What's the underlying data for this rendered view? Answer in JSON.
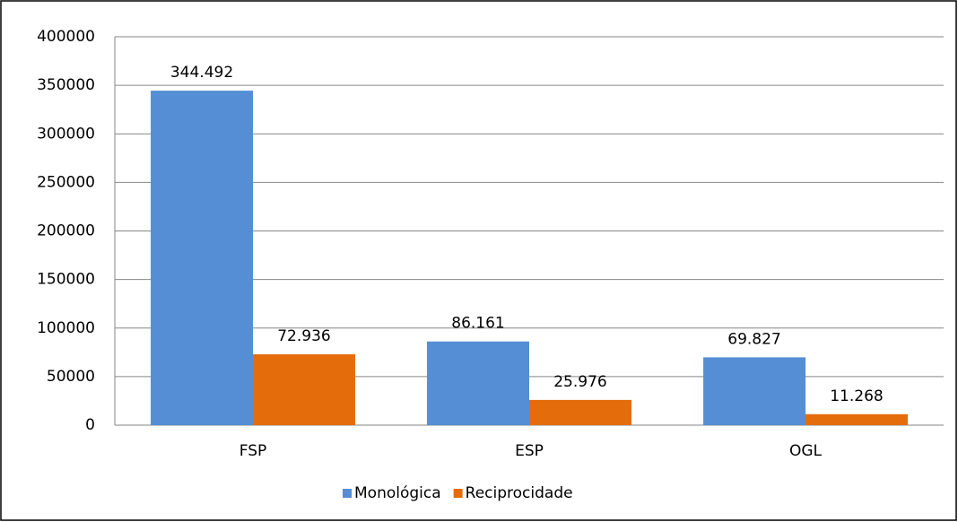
{
  "chart_data": {
    "type": "bar",
    "categories": [
      "FSP",
      "ESP",
      "OGL"
    ],
    "series": [
      {
        "name": "Monológica",
        "color": "#558ed5",
        "values": [
          344492,
          86161,
          69827
        ],
        "value_labels": [
          "344.492",
          "86.161",
          "69.827"
        ]
      },
      {
        "name": "Reciprocidade",
        "color": "#e46c0a",
        "values": [
          72936,
          25976,
          11268
        ],
        "value_labels": [
          "72.936",
          "25.976",
          "11.268"
        ]
      }
    ],
    "ylim": [
      0,
      400000
    ],
    "yticks": [
      0,
      50000,
      100000,
      150000,
      200000,
      250000,
      300000,
      350000,
      400000
    ],
    "grid": true,
    "legend": "bottom"
  }
}
